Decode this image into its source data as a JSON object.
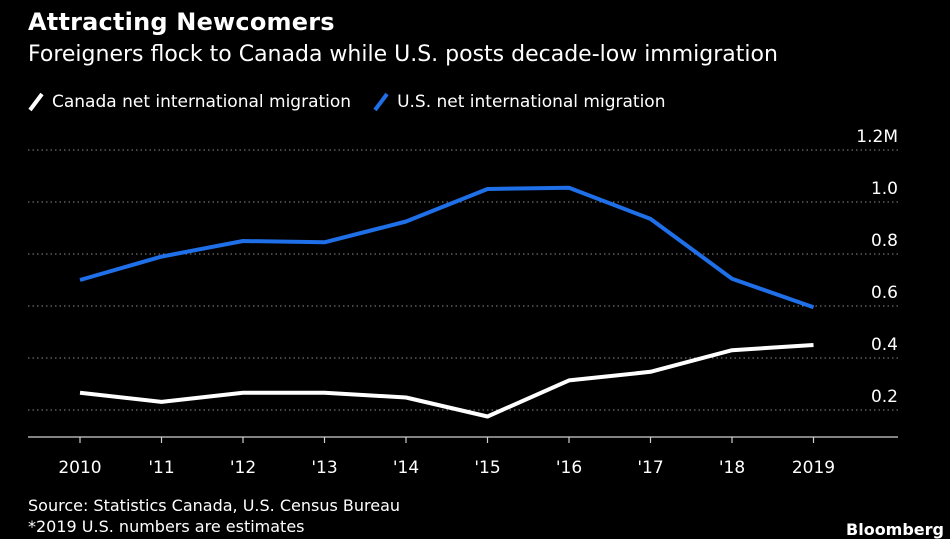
{
  "header": {
    "title": "Attracting Newcomers",
    "subtitle": "Foreigners flock to Canada while U.S. posts decade-low immigration"
  },
  "footer": {
    "source": "Source: Statistics Canada, U.S. Census Bureau",
    "note": "*2019 U.S. numbers are estimates",
    "brand": "Bloomberg"
  },
  "chart_data": {
    "type": "line",
    "x": [
      "2010",
      "'11",
      "'12",
      "'13",
      "'14",
      "'15",
      "'16",
      "'17",
      "'18",
      "2019"
    ],
    "y_ticks": [
      "1.2M",
      "1.0",
      "0.8",
      "0.6",
      "0.4",
      "0.2"
    ],
    "y_tick_values": [
      1.2,
      1.0,
      0.8,
      0.6,
      0.4,
      0.2
    ],
    "ylim": [
      0.1,
      1.2
    ],
    "grid": true,
    "legend_position": "top-left",
    "series": [
      {
        "name": "Canada net international migration",
        "color": "#ffffff",
        "values": [
          0.266,
          0.231,
          0.266,
          0.266,
          0.248,
          0.175,
          0.314,
          0.347,
          0.43,
          0.45
        ]
      },
      {
        "name": "U.S. net international migration",
        "color": "#1f6fe8",
        "values": [
          0.7,
          0.79,
          0.85,
          0.845,
          0.925,
          1.05,
          1.055,
          0.935,
          0.705,
          0.595
        ]
      }
    ]
  }
}
